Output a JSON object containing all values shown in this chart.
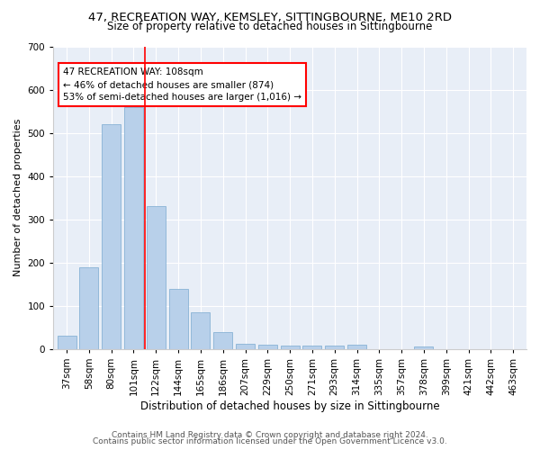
{
  "title1": "47, RECREATION WAY, KEMSLEY, SITTINGBOURNE, ME10 2RD",
  "title2": "Size of property relative to detached houses in Sittingbourne",
  "xlabel": "Distribution of detached houses by size in Sittingbourne",
  "ylabel": "Number of detached properties",
  "categories": [
    "37sqm",
    "58sqm",
    "80sqm",
    "101sqm",
    "122sqm",
    "144sqm",
    "165sqm",
    "186sqm",
    "207sqm",
    "229sqm",
    "250sqm",
    "271sqm",
    "293sqm",
    "314sqm",
    "335sqm",
    "357sqm",
    "378sqm",
    "399sqm",
    "421sqm",
    "442sqm",
    "463sqm"
  ],
  "values": [
    30,
    190,
    520,
    560,
    330,
    140,
    85,
    40,
    13,
    10,
    8,
    8,
    8,
    10,
    0,
    0,
    6,
    0,
    0,
    0,
    0
  ],
  "bar_color": "#b8d0ea",
  "bar_edgecolor": "#7aaad0",
  "vline_x_index": 3,
  "vline_color": "red",
  "annotation_text": "47 RECREATION WAY: 108sqm\n← 46% of detached houses are smaller (874)\n53% of semi-detached houses are larger (1,016) →",
  "annotation_box_color": "white",
  "annotation_box_edgecolor": "red",
  "ylim": [
    0,
    700
  ],
  "yticks": [
    0,
    100,
    200,
    300,
    400,
    500,
    600,
    700
  ],
  "footer1": "Contains HM Land Registry data © Crown copyright and database right 2024.",
  "footer2": "Contains public sector information licensed under the Open Government Licence v3.0.",
  "plot_background": "#e8eef7",
  "title1_fontsize": 9.5,
  "title2_fontsize": 8.5,
  "xlabel_fontsize": 8.5,
  "ylabel_fontsize": 8,
  "tick_fontsize": 7.5,
  "annotation_fontsize": 7.5,
  "footer_fontsize": 6.5
}
